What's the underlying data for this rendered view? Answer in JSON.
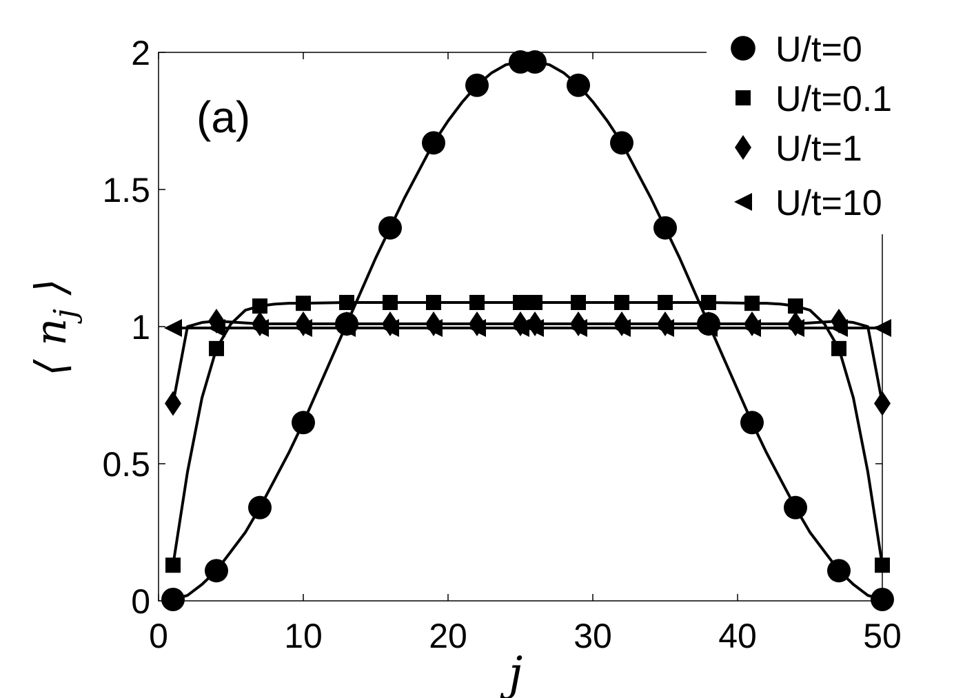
{
  "chart_data": {
    "type": "line",
    "panel_label": "(a)",
    "xlabel": "j",
    "ylabel": "⟨n_j⟩",
    "xlim": [
      0,
      50
    ],
    "ylim": [
      0,
      2
    ],
    "x_ticks": [
      0,
      10,
      20,
      30,
      40,
      50
    ],
    "x_tick_labels": [
      "0",
      "10",
      "20",
      "30",
      "40",
      "50"
    ],
    "y_ticks": [
      0,
      0.5,
      1,
      1.5,
      2
    ],
    "y_tick_labels": [
      "0",
      "0.5",
      "1",
      "1.5",
      "2"
    ],
    "grid": false,
    "legend_position": "top-right",
    "series": [
      {
        "name": "U/t=0",
        "marker": "circle",
        "marker_x": [
          1,
          4,
          7,
          10,
          13,
          16,
          19,
          22,
          25,
          26,
          29,
          32,
          35,
          38,
          41,
          44,
          47,
          50
        ],
        "marker_y": [
          0.005,
          0.11,
          0.34,
          0.65,
          1.01,
          1.36,
          1.67,
          1.88,
          1.965,
          1.965,
          1.88,
          1.67,
          1.36,
          1.01,
          0.65,
          0.34,
          0.11,
          0.005
        ],
        "line_x": [
          1,
          2,
          3,
          4,
          5,
          6,
          7,
          8,
          9,
          10,
          11,
          12,
          13,
          14,
          15,
          16,
          17,
          18,
          19,
          20,
          21,
          22,
          23,
          24,
          25,
          25.5,
          26,
          27,
          28,
          29,
          30,
          31,
          32,
          33,
          34,
          35,
          36,
          37,
          38,
          39,
          40,
          41,
          42,
          43,
          44,
          45,
          46,
          47,
          48,
          49,
          50
        ],
        "line_y": [
          0.005,
          0.02,
          0.06,
          0.11,
          0.18,
          0.25,
          0.34,
          0.44,
          0.54,
          0.65,
          0.77,
          0.89,
          1.01,
          1.13,
          1.25,
          1.36,
          1.47,
          1.57,
          1.67,
          1.75,
          1.82,
          1.88,
          1.925,
          1.955,
          1.965,
          1.97,
          1.965,
          1.955,
          1.925,
          1.88,
          1.82,
          1.75,
          1.67,
          1.57,
          1.47,
          1.36,
          1.25,
          1.13,
          1.01,
          0.89,
          0.77,
          0.65,
          0.54,
          0.44,
          0.34,
          0.25,
          0.18,
          0.11,
          0.06,
          0.02,
          0.005
        ]
      },
      {
        "name": "U/t=0.1",
        "marker": "square",
        "marker_x": [
          1,
          4,
          7,
          10,
          13,
          16,
          19,
          22,
          25,
          26,
          29,
          32,
          35,
          38,
          41,
          44,
          47,
          50
        ],
        "marker_y": [
          0.13,
          0.92,
          1.075,
          1.085,
          1.088,
          1.088,
          1.088,
          1.088,
          1.088,
          1.088,
          1.088,
          1.088,
          1.088,
          1.088,
          1.085,
          1.075,
          0.92,
          0.13
        ],
        "line_x": [
          1,
          2,
          3,
          4,
          5,
          6,
          7,
          8,
          9,
          10,
          13,
          16,
          19,
          22,
          25,
          26,
          29,
          32,
          35,
          38,
          41,
          42,
          43,
          44,
          45,
          46,
          47,
          48,
          49,
          50
        ],
        "line_y": [
          0.13,
          0.47,
          0.74,
          0.92,
          1.01,
          1.06,
          1.075,
          1.082,
          1.085,
          1.085,
          1.088,
          1.088,
          1.088,
          1.088,
          1.088,
          1.088,
          1.088,
          1.088,
          1.088,
          1.088,
          1.085,
          1.085,
          1.082,
          1.075,
          1.06,
          1.01,
          0.92,
          0.74,
          0.47,
          0.13
        ]
      },
      {
        "name": "U/t=1",
        "marker": "diamond",
        "marker_x": [
          1,
          4,
          7,
          10,
          13,
          16,
          19,
          22,
          25,
          26,
          29,
          32,
          35,
          38,
          41,
          44,
          47,
          50
        ],
        "marker_y": [
          0.72,
          1.02,
          1.01,
          1.01,
          1.01,
          1.01,
          1.01,
          1.01,
          1.01,
          1.01,
          1.01,
          1.01,
          1.01,
          1.01,
          1.01,
          1.01,
          1.02,
          0.72
        ],
        "line_x": [
          1,
          2,
          3,
          4,
          7,
          10,
          13,
          16,
          19,
          22,
          25,
          26,
          29,
          32,
          35,
          38,
          41,
          44,
          47,
          48,
          49,
          50
        ],
        "line_y": [
          0.72,
          1.0,
          1.015,
          1.02,
          1.01,
          1.01,
          1.01,
          1.01,
          1.01,
          1.01,
          1.01,
          1.01,
          1.01,
          1.01,
          1.01,
          1.01,
          1.01,
          1.01,
          1.02,
          1.015,
          1.0,
          0.72
        ]
      },
      {
        "name": "U/t=10",
        "marker": "triangle-left",
        "marker_x": [
          1,
          4,
          7,
          10,
          13,
          16,
          19,
          22,
          25,
          26,
          29,
          32,
          35,
          38,
          41,
          44,
          47,
          50
        ],
        "marker_y": [
          0.995,
          0.995,
          0.995,
          0.995,
          0.995,
          0.995,
          0.995,
          0.995,
          0.995,
          0.995,
          0.995,
          0.995,
          0.995,
          0.995,
          0.995,
          0.995,
          0.995,
          0.995
        ],
        "line_x": [
          1,
          50
        ],
        "line_y": [
          0.995,
          0.995
        ]
      }
    ]
  }
}
